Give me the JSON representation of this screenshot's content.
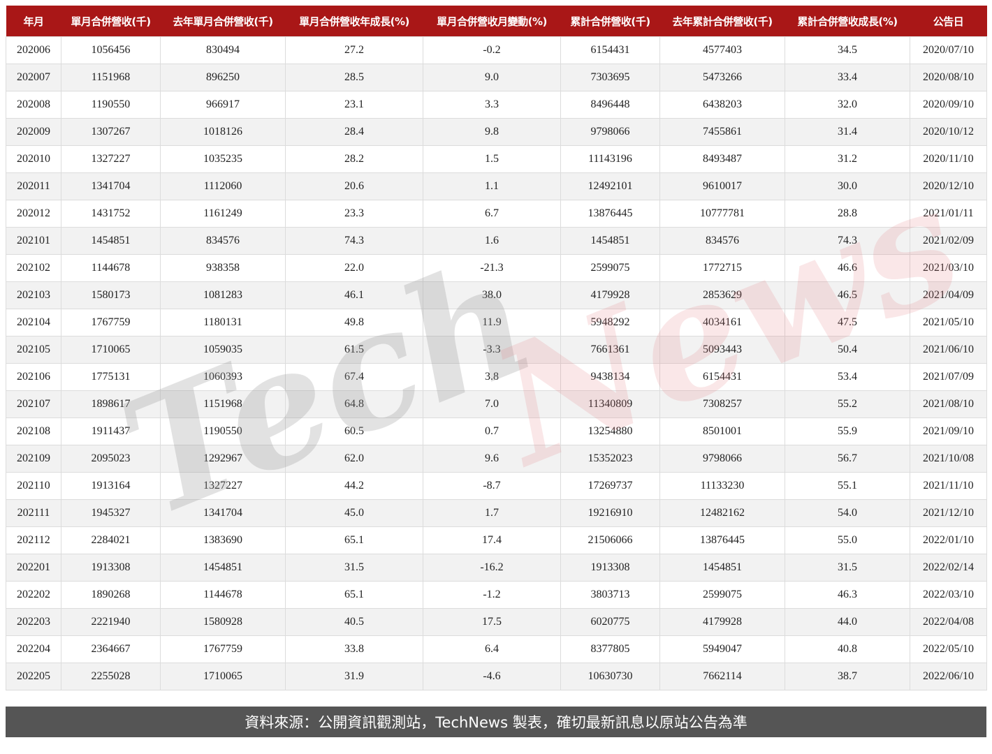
{
  "watermark": {
    "part1": "Tech",
    "part2": "News"
  },
  "colors": {
    "header_bg": "#a91717",
    "footer_bg": "#555555",
    "row_alt": "#f2f2f2"
  },
  "chart_data": {
    "type": "table",
    "columns": [
      "年月",
      "單月合併營收(千)",
      "去年單月合併營收(千)",
      "單月合併營收年成長(%)",
      "單月合併營收月變動(%)",
      "累計合併營收(千)",
      "去年累計合併營收(千)",
      "累計合併營收成長(%)",
      "公告日"
    ],
    "rows": [
      [
        "202006",
        "1056456",
        "830494",
        "27.2",
        "-0.2",
        "6154431",
        "4577403",
        "34.5",
        "2020/07/10"
      ],
      [
        "202007",
        "1151968",
        "896250",
        "28.5",
        "9.0",
        "7303695",
        "5473266",
        "33.4",
        "2020/08/10"
      ],
      [
        "202008",
        "1190550",
        "966917",
        "23.1",
        "3.3",
        "8496448",
        "6438203",
        "32.0",
        "2020/09/10"
      ],
      [
        "202009",
        "1307267",
        "1018126",
        "28.4",
        "9.8",
        "9798066",
        "7455861",
        "31.4",
        "2020/10/12"
      ],
      [
        "202010",
        "1327227",
        "1035235",
        "28.2",
        "1.5",
        "11143196",
        "8493487",
        "31.2",
        "2020/11/10"
      ],
      [
        "202011",
        "1341704",
        "1112060",
        "20.6",
        "1.1",
        "12492101",
        "9610017",
        "30.0",
        "2020/12/10"
      ],
      [
        "202012",
        "1431752",
        "1161249",
        "23.3",
        "6.7",
        "13876445",
        "10777781",
        "28.8",
        "2021/01/11"
      ],
      [
        "202101",
        "1454851",
        "834576",
        "74.3",
        "1.6",
        "1454851",
        "834576",
        "74.3",
        "2021/02/09"
      ],
      [
        "202102",
        "1144678",
        "938358",
        "22.0",
        "-21.3",
        "2599075",
        "1772715",
        "46.6",
        "2021/03/10"
      ],
      [
        "202103",
        "1580173",
        "1081283",
        "46.1",
        "38.0",
        "4179928",
        "2853629",
        "46.5",
        "2021/04/09"
      ],
      [
        "202104",
        "1767759",
        "1180131",
        "49.8",
        "11.9",
        "5948292",
        "4034161",
        "47.5",
        "2021/05/10"
      ],
      [
        "202105",
        "1710065",
        "1059035",
        "61.5",
        "-3.3",
        "7661361",
        "5093443",
        "50.4",
        "2021/06/10"
      ],
      [
        "202106",
        "1775131",
        "1060393",
        "67.4",
        "3.8",
        "9438134",
        "6154431",
        "53.4",
        "2021/07/09"
      ],
      [
        "202107",
        "1898617",
        "1151968",
        "64.8",
        "7.0",
        "11340809",
        "7308257",
        "55.2",
        "2021/08/10"
      ],
      [
        "202108",
        "1911437",
        "1190550",
        "60.5",
        "0.7",
        "13254880",
        "8501001",
        "55.9",
        "2021/09/10"
      ],
      [
        "202109",
        "2095023",
        "1292967",
        "62.0",
        "9.6",
        "15352023",
        "9798066",
        "56.7",
        "2021/10/08"
      ],
      [
        "202110",
        "1913164",
        "1327227",
        "44.2",
        "-8.7",
        "17269737",
        "11133230",
        "55.1",
        "2021/11/10"
      ],
      [
        "202111",
        "1945327",
        "1341704",
        "45.0",
        "1.7",
        "19216910",
        "12482162",
        "54.0",
        "2021/12/10"
      ],
      [
        "202112",
        "2284021",
        "1383690",
        "65.1",
        "17.4",
        "21506066",
        "13876445",
        "55.0",
        "2022/01/10"
      ],
      [
        "202201",
        "1913308",
        "1454851",
        "31.5",
        "-16.2",
        "1913308",
        "1454851",
        "31.5",
        "2022/02/14"
      ],
      [
        "202202",
        "1890268",
        "1144678",
        "65.1",
        "-1.2",
        "3803713",
        "2599075",
        "46.3",
        "2022/03/10"
      ],
      [
        "202203",
        "2221940",
        "1580928",
        "40.5",
        "17.5",
        "6020775",
        "4179928",
        "44.0",
        "2022/04/08"
      ],
      [
        "202204",
        "2364667",
        "1767759",
        "33.8",
        "6.4",
        "8377805",
        "5949047",
        "40.8",
        "2022/05/10"
      ],
      [
        "202205",
        "2255028",
        "1710065",
        "31.9",
        "-4.6",
        "10630730",
        "7662114",
        "38.7",
        "2022/06/10"
      ]
    ]
  },
  "footer": {
    "text": "資料來源：公開資訊觀測站，TechNews 製表，確切最新訊息以原站公告為準"
  }
}
